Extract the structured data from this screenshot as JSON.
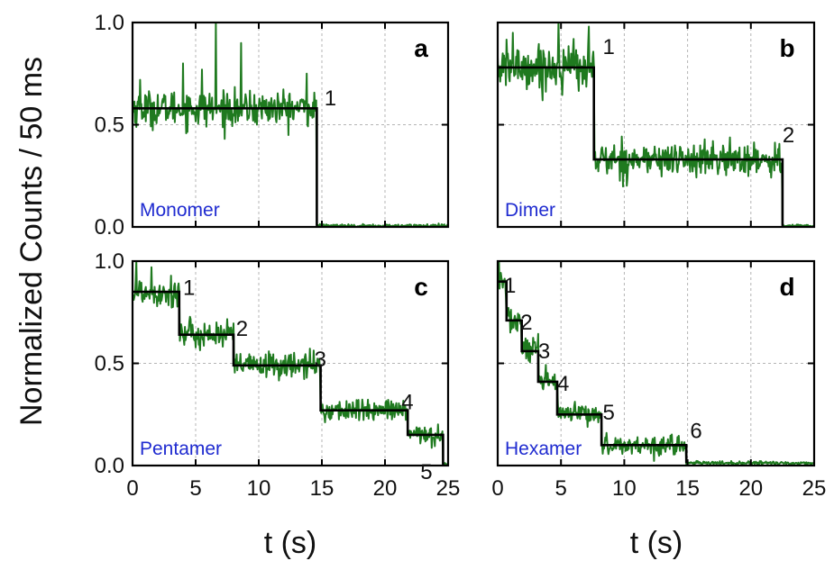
{
  "figure": {
    "ylabel": "Normalized Counts / 50 ms",
    "xlabel": "t (s)"
  },
  "colors": {
    "trace": "#1f7a1f",
    "step_fit": "#000000",
    "panel_name": "#1f2bd0",
    "grid": "#b5b5b5"
  },
  "chart_data": [
    {
      "type": "line",
      "panel": "a",
      "name": "Monomer",
      "xlim": [
        0,
        25
      ],
      "ylim": [
        0,
        1
      ],
      "xticks": [
        "0",
        "5",
        "10",
        "15",
        "20",
        "25"
      ],
      "yticks": [
        "0.0",
        "0.5",
        "1.0"
      ],
      "x_tick_labels_shown": false,
      "y_tick_labels_shown": true,
      "grid": true,
      "trace_end": 25,
      "trace_noise": 0.045,
      "bleach_steps": [
        {
          "label": "1",
          "t_start": 0,
          "t_end": 14.6,
          "level": 0.58
        }
      ],
      "final_level": 0.005,
      "spikes": [
        [
          0.6,
          0.72
        ],
        [
          4.0,
          0.8
        ],
        [
          5.5,
          0.77
        ],
        [
          6.6,
          1.0
        ],
        [
          8.6,
          0.9
        ],
        [
          13.8,
          0.75
        ]
      ],
      "step_labels": [
        {
          "text": "1",
          "x": 15.2,
          "y": 0.63
        }
      ]
    },
    {
      "type": "line",
      "panel": "b",
      "name": "Dimer",
      "xlim": [
        0,
        25
      ],
      "ylim": [
        0,
        1
      ],
      "xticks": [
        "0",
        "5",
        "10",
        "15",
        "20",
        "25"
      ],
      "yticks": [
        "0.0",
        "0.5",
        "1.0"
      ],
      "x_tick_labels_shown": false,
      "y_tick_labels_shown": false,
      "grid": true,
      "trace_end": 25,
      "trace_noise": 0.05,
      "bleach_steps": [
        {
          "label": "1",
          "t_start": 0,
          "t_end": 7.6,
          "level": 0.78
        },
        {
          "label": "2",
          "t_start": 7.6,
          "t_end": 22.5,
          "level": 0.33
        }
      ],
      "final_level": 0.005,
      "spikes": [
        [
          1.2,
          0.95
        ],
        [
          4.8,
          1.0
        ],
        [
          6.0,
          0.92
        ],
        [
          7.2,
          0.98
        ]
      ],
      "step_labels": [
        {
          "text": "1",
          "x": 8.3,
          "y": 0.88
        },
        {
          "text": "2",
          "x": 22.5,
          "y": 0.45
        }
      ]
    },
    {
      "type": "line",
      "panel": "c",
      "name": "Pentamer",
      "xlim": [
        0,
        25
      ],
      "ylim": [
        0,
        1
      ],
      "xticks": [
        "0",
        "5",
        "10",
        "15",
        "20",
        "25"
      ],
      "yticks": [
        "0.0",
        "0.5",
        "1.0"
      ],
      "x_tick_labels_shown": true,
      "y_tick_labels_shown": true,
      "grid": true,
      "trace_end": 25,
      "trace_noise": 0.035,
      "bleach_steps": [
        {
          "label": "1",
          "t_start": 0,
          "t_end": 3.7,
          "level": 0.85
        },
        {
          "label": "2",
          "t_start": 3.7,
          "t_end": 8.0,
          "level": 0.64
        },
        {
          "label": "3",
          "t_start": 8.0,
          "t_end": 14.9,
          "level": 0.49
        },
        {
          "label": "4",
          "t_start": 14.9,
          "t_end": 21.8,
          "level": 0.27
        },
        {
          "label": "5",
          "t_start": 21.8,
          "t_end": 24.6,
          "level": 0.15
        }
      ],
      "final_level": 0.005,
      "spikes": [
        [
          0.3,
          1.0
        ],
        [
          1.5,
          0.97
        ]
      ],
      "step_labels": [
        {
          "text": "1",
          "x": 4.0,
          "y": 0.87
        },
        {
          "text": "2",
          "x": 8.2,
          "y": 0.67
        },
        {
          "text": "3",
          "x": 14.4,
          "y": 0.52
        },
        {
          "text": "4",
          "x": 21.3,
          "y": 0.31
        },
        {
          "text": "5",
          "x": 22.8,
          "y": -0.03
        }
      ]
    },
    {
      "type": "line",
      "panel": "d",
      "name": "Hexamer",
      "xlim": [
        0,
        25
      ],
      "ylim": [
        0,
        1
      ],
      "xticks": [
        "0",
        "5",
        "10",
        "15",
        "20",
        "25"
      ],
      "yticks": [
        "0.0",
        "0.5",
        "1.0"
      ],
      "x_tick_labels_shown": true,
      "y_tick_labels_shown": false,
      "grid": true,
      "trace_end": 25,
      "trace_noise": 0.035,
      "bleach_steps": [
        {
          "label": "1",
          "t_start": 0,
          "t_end": 0.7,
          "level": 0.9
        },
        {
          "label": "2",
          "t_start": 0.7,
          "t_end": 1.9,
          "level": 0.71
        },
        {
          "label": "3",
          "t_start": 1.9,
          "t_end": 3.2,
          "level": 0.56
        },
        {
          "label": "4",
          "t_start": 3.2,
          "t_end": 4.7,
          "level": 0.41
        },
        {
          "label": "5",
          "t_start": 4.7,
          "t_end": 8.2,
          "level": 0.25
        },
        {
          "label": "6",
          "t_start": 8.2,
          "t_end": 14.9,
          "level": 0.1
        }
      ],
      "final_level": 0.012,
      "spikes": [
        [
          0.1,
          1.0
        ]
      ],
      "step_labels": [
        {
          "text": "1",
          "x": 0.5,
          "y": 0.88
        },
        {
          "text": "2",
          "x": 1.8,
          "y": 0.7
        },
        {
          "text": "3",
          "x": 3.2,
          "y": 0.56
        },
        {
          "text": "4",
          "x": 4.7,
          "y": 0.4
        },
        {
          "text": "5",
          "x": 8.3,
          "y": 0.26
        },
        {
          "text": "6",
          "x": 15.2,
          "y": 0.17
        }
      ]
    }
  ]
}
